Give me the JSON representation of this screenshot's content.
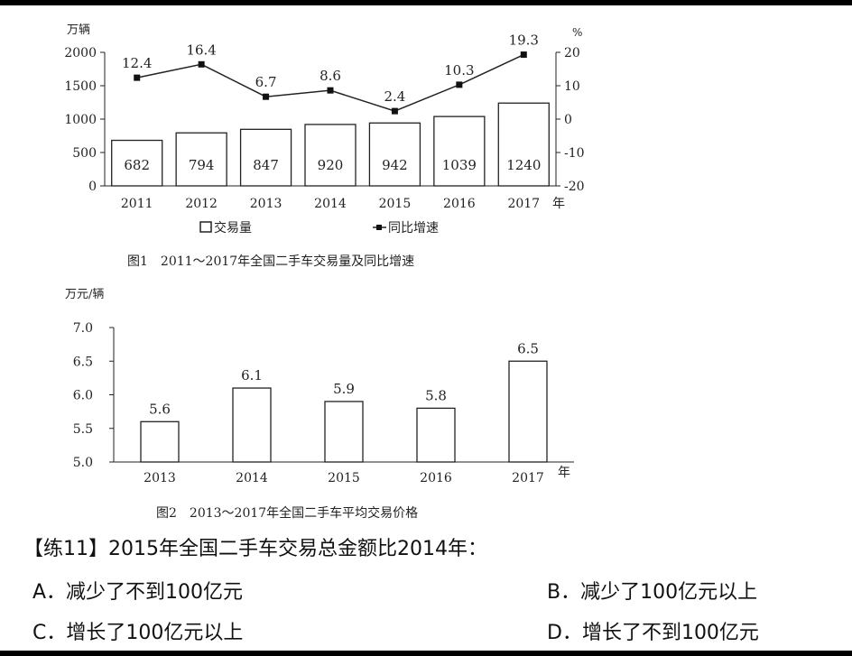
{
  "chart_data": [
    {
      "type": "bar+line",
      "caption": "图1　2011～2017年全国二手车交易量及同比增速",
      "left_unit": "万辆",
      "right_unit": "%",
      "x_unit": "年",
      "categories": [
        "2011",
        "2012",
        "2013",
        "2014",
        "2015",
        "2016",
        "2017"
      ],
      "bars": {
        "name": "交易量",
        "values": [
          682,
          794,
          847,
          920,
          942,
          1039,
          1240
        ]
      },
      "line": {
        "name": "同比增速",
        "values": [
          12.4,
          16.4,
          6.7,
          8.6,
          2.4,
          10.3,
          19.3
        ]
      },
      "ylim_left": [
        0,
        2000
      ],
      "ylim_right": [
        -20,
        20
      ],
      "left_ticks": [
        "0",
        "500",
        "1000",
        "1500",
        "2000"
      ],
      "right_ticks": [
        "-20",
        "-10",
        "0",
        "10",
        "20"
      ],
      "legend_placement": "bottom"
    },
    {
      "type": "bar",
      "caption": "图2　2013～2017年全国二手车平均交易价格",
      "y_unit": "万元/辆",
      "x_unit": "年",
      "categories": [
        "2013",
        "2014",
        "2015",
        "2016",
        "2017"
      ],
      "values": [
        5.6,
        6.1,
        5.9,
        5.8,
        6.5
      ],
      "value_labels": [
        "5.6",
        "6.1",
        "5.9",
        "5.8",
        "6.5"
      ],
      "ylim": [
        5.0,
        7.0
      ],
      "y_ticks": [
        "5.0",
        "5.5",
        "6.0",
        "6.5",
        "7.0"
      ]
    }
  ],
  "question": {
    "text": "【练11】2015年全国二手车交易总金额比2014年：",
    "options": {
      "A": "A．减少了不到100亿元",
      "B": "B．减少了100亿元以上",
      "C": "C．增长了100亿元以上",
      "D": "D．增长了不到100亿元"
    }
  }
}
